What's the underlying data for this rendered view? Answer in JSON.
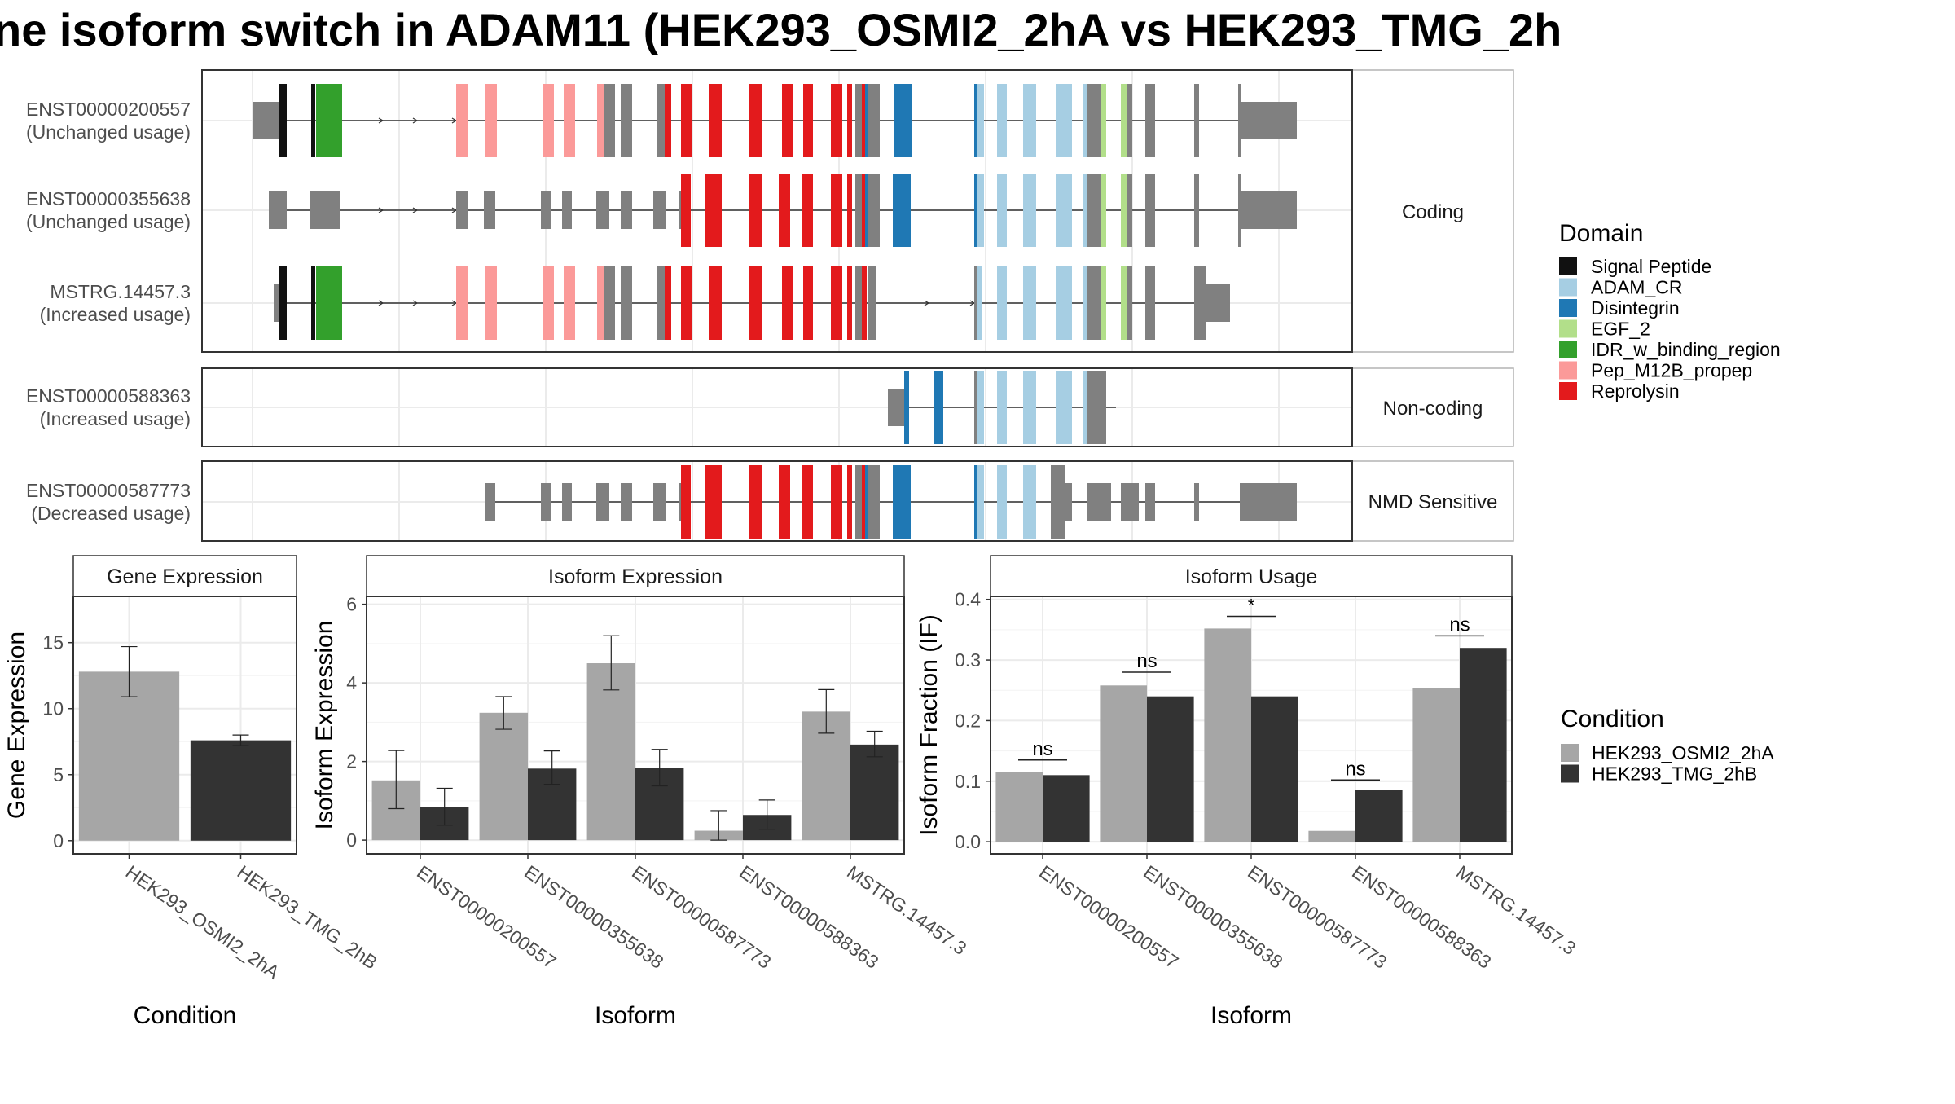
{
  "title": "ne isoform switch in ADAM11 (HEK293_OSMI2_2hA vs HEK293_TMG_2h",
  "colors": {
    "signal_peptide": "#111111",
    "adam_cr": "#a6cee3",
    "disintegrin": "#1f78b4",
    "egf_2": "#b2df8a",
    "idr": "#33a02c",
    "pep_m12b": "#fb9a99",
    "reprolysin": "#e31a1c",
    "exon": "#808080",
    "cond_a": "#a6a6a6",
    "cond_b": "#333333"
  },
  "structure": {
    "groups": [
      {
        "label": "Coding",
        "transcripts": [
          {
            "id": "ENST00000200557",
            "usage": "(Unchanged usage)"
          },
          {
            "id": "ENST00000355638",
            "usage": "(Unchanged usage)"
          },
          {
            "id": "MSTRG.14457.3",
            "usage": "(Increased usage)"
          }
        ]
      },
      {
        "label": "Non-coding",
        "transcripts": [
          {
            "id": "ENST00000588363",
            "usage": "(Increased usage)"
          }
        ]
      },
      {
        "label": "NMD Sensitive",
        "transcripts": [
          {
            "id": "ENST00000587773",
            "usage": "(Decreased usage)"
          }
        ]
      }
    ]
  },
  "legend_domain": {
    "title": "Domain",
    "items": [
      {
        "label": "Signal Peptide",
        "color": "#111111"
      },
      {
        "label": "ADAM_CR",
        "color": "#a6cee3"
      },
      {
        "label": "Disintegrin",
        "color": "#1f78b4"
      },
      {
        "label": "EGF_2",
        "color": "#b2df8a"
      },
      {
        "label": "IDR_w_binding_region",
        "color": "#33a02c"
      },
      {
        "label": "Pep_M12B_propep",
        "color": "#fb9a99"
      },
      {
        "label": "Reprolysin",
        "color": "#e31a1c"
      }
    ]
  },
  "legend_condition": {
    "title": "Condition",
    "items": [
      {
        "label": "HEK293_OSMI2_2hA",
        "color": "#a6a6a6"
      },
      {
        "label": "HEK293_TMG_2hB",
        "color": "#333333"
      }
    ]
  },
  "chart_data": [
    {
      "type": "bar",
      "title": "Gene Expression",
      "xlabel": "Condition",
      "ylabel": "Gene Expression",
      "categories": [
        "HEK293_OSMI2_2hA",
        "HEK293_TMG_2hB"
      ],
      "ylim": [
        -1,
        18.5
      ],
      "yticks": [
        0,
        5,
        10,
        15
      ],
      "values": [
        12.8,
        7.6
      ],
      "err_low": [
        10.9,
        7.2
      ],
      "err_high": [
        14.7,
        8.0
      ]
    },
    {
      "type": "bar",
      "title": "Isoform Expression",
      "xlabel": "Isoform",
      "ylabel": "Isoform Expression",
      "categories": [
        "ENST00000200557",
        "ENST00000355638",
        "ENST00000587773",
        "ENST00000588363",
        "MSTRG.14457.3"
      ],
      "ylim": [
        -0.35,
        6.2
      ],
      "yticks": [
        0,
        2,
        4,
        6
      ],
      "series": [
        {
          "name": "HEK293_OSMI2_2hA",
          "values": [
            1.52,
            3.24,
            4.5,
            0.24,
            3.27
          ],
          "err_low": [
            0.8,
            2.82,
            3.82,
            0.0,
            2.72
          ],
          "err_high": [
            2.28,
            3.65,
            5.2,
            0.75,
            3.83
          ]
        },
        {
          "name": "HEK293_TMG_2hB",
          "values": [
            0.84,
            1.82,
            1.84,
            0.64,
            2.43
          ],
          "err_low": [
            0.38,
            1.42,
            1.38,
            0.28,
            2.12
          ],
          "err_high": [
            1.32,
            2.27,
            2.31,
            1.02,
            2.77
          ]
        }
      ]
    },
    {
      "type": "bar",
      "title": "Isoform Usage",
      "xlabel": "Isoform",
      "ylabel": "Isoform Fraction (IF)",
      "categories": [
        "ENST00000200557",
        "ENST00000355638",
        "ENST00000587773",
        "ENST00000588363",
        "MSTRG.14457.3"
      ],
      "ylim": [
        -0.02,
        0.405
      ],
      "yticks": [
        "0.0",
        "0.1",
        "0.2",
        "0.3",
        "0.4"
      ],
      "series": [
        {
          "name": "HEK293_OSMI2_2hA",
          "values": [
            0.115,
            0.258,
            0.352,
            0.018,
            0.254
          ]
        },
        {
          "name": "HEK293_TMG_2hB",
          "values": [
            0.11,
            0.24,
            0.24,
            0.085,
            0.32
          ]
        }
      ],
      "significance": [
        "ns",
        "ns",
        "*",
        "ns",
        "ns"
      ],
      "sig_heights": [
        0.135,
        0.28,
        0.372,
        0.102,
        0.34
      ]
    }
  ]
}
